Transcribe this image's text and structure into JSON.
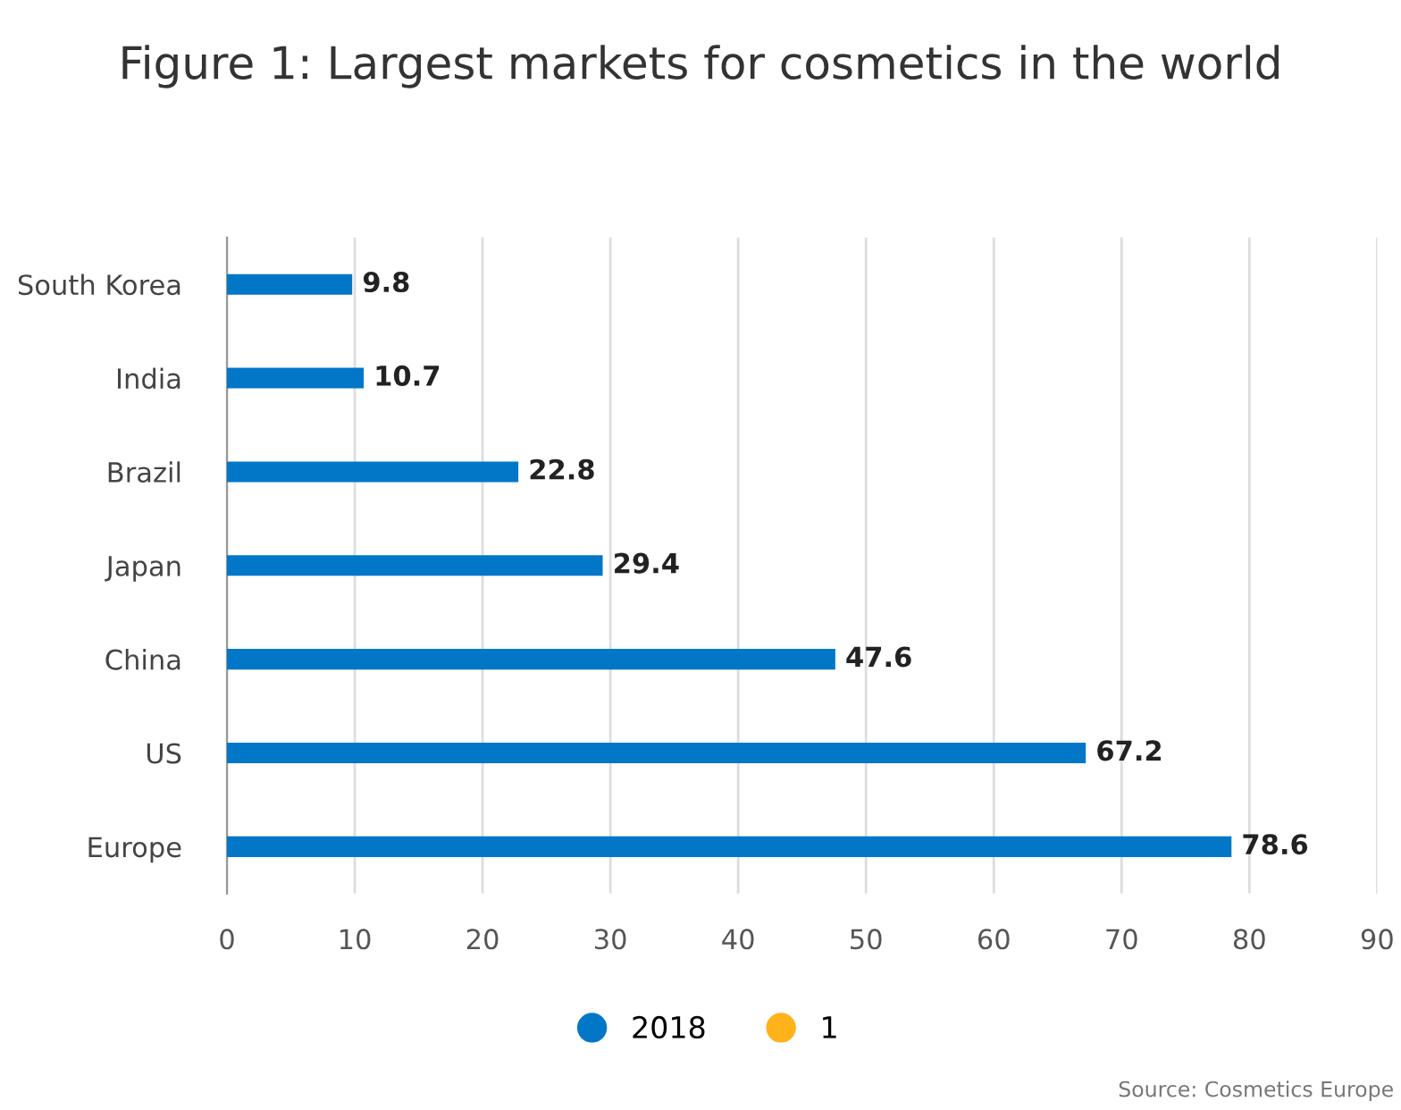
{
  "chart_data": {
    "type": "bar",
    "orientation": "horizontal",
    "title": "Figure 1: Largest markets for cosmetics in the world",
    "categories": [
      "South Korea",
      "India",
      "Brazil",
      "Japan",
      "China",
      "US",
      "Europe"
    ],
    "series": [
      {
        "name": "2018",
        "color": "#0277c8",
        "values": [
          9.8,
          10.7,
          22.8,
          29.4,
          47.6,
          67.2,
          78.6
        ]
      },
      {
        "name": "1",
        "color": "#ffb21a",
        "values": [
          null,
          null,
          null,
          null,
          null,
          null,
          null
        ]
      }
    ],
    "xlim": [
      0,
      90
    ],
    "xticks": [
      0,
      10,
      20,
      30,
      40,
      50,
      60,
      70,
      80,
      90
    ],
    "grid": "x",
    "data_labels": true,
    "legend": "bottom",
    "annotations": [
      "Source: Cosmetics Europe"
    ]
  }
}
